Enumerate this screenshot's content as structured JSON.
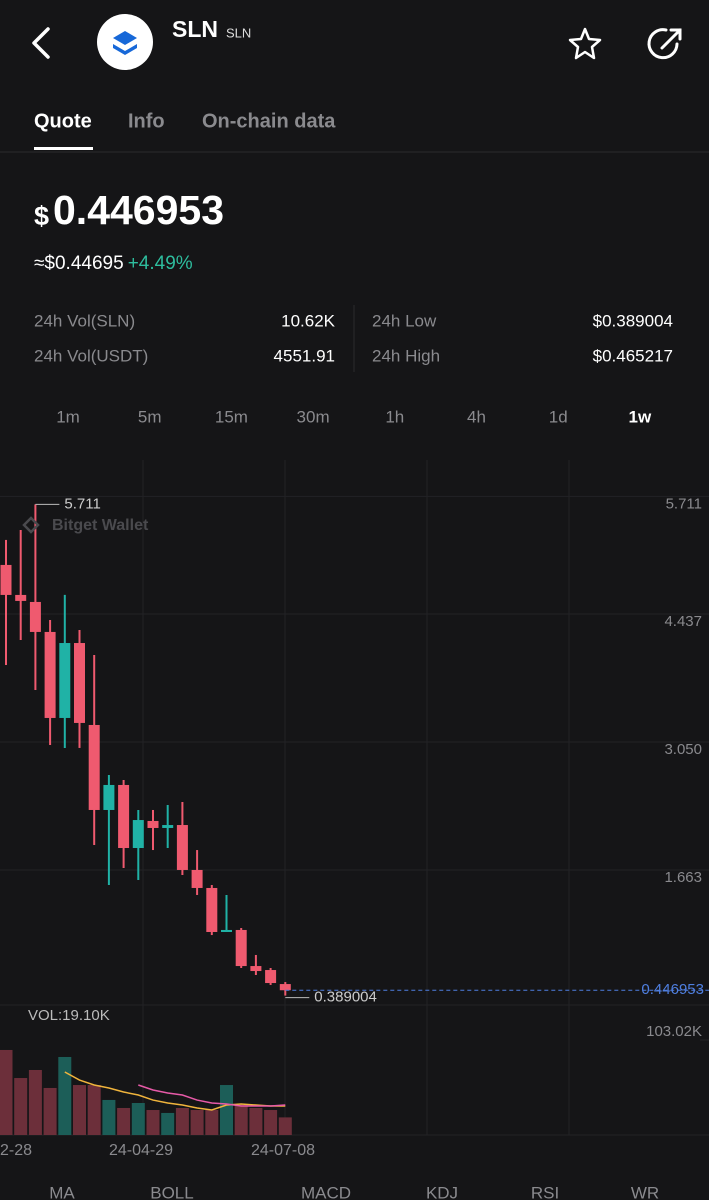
{
  "header": {
    "symbol": "SLN",
    "symbol_small": "SLN"
  },
  "tabs": [
    "Quote",
    "Info",
    "On-chain data"
  ],
  "active_tab": 0,
  "price": {
    "currency": "$",
    "value": "0.446953",
    "approx": "≈$0.44695",
    "change": "+4.49%"
  },
  "stats": [
    {
      "label": "24h Vol(SLN)",
      "value": "10.62K"
    },
    {
      "label": "24h Vol(USDT)",
      "value": "4551.91"
    },
    {
      "label": "24h Low",
      "value": "$0.389004"
    },
    {
      "label": "24h High",
      "value": "$0.465217"
    }
  ],
  "intervals": [
    "1m",
    "5m",
    "15m",
    "30m",
    "1h",
    "4h",
    "1d",
    "1w"
  ],
  "active_interval": 7,
  "chart_data": {
    "type": "candlestick",
    "watermark": "Bitget Wallet",
    "up_color": "#20b2a6",
    "down_color": "#ef5a6f",
    "open": [
      5.055,
      4.73,
      4.654,
      4.329,
      3.397,
      4.209,
      3.321,
      2.4,
      2.671,
      1.988,
      2.281,
      2.205,
      2.237,
      1.75,
      1.555,
      1.078,
      1.1,
      0.709,
      0.666,
      0.514
    ],
    "high": [
      5.326,
      5.434,
      5.711,
      4.459,
      4.73,
      4.35,
      4.079,
      2.779,
      2.725,
      2.4,
      2.4,
      2.454,
      2.487,
      1.966,
      1.587,
      1.479,
      1.121,
      0.829,
      0.688,
      0.536
    ],
    "low": [
      3.971,
      4.242,
      3.7,
      3.104,
      3.072,
      3.072,
      2.021,
      1.587,
      1.771,
      1.641,
      1.966,
      1.988,
      1.695,
      1.479,
      1.045,
      1.078,
      0.688,
      0.612,
      0.504,
      0.389
    ],
    "close": [
      4.73,
      4.665,
      4.329,
      3.397,
      4.209,
      3.343,
      2.4,
      2.671,
      1.988,
      2.291,
      2.205,
      2.237,
      1.75,
      1.555,
      1.078,
      1.1,
      0.709,
      0.655,
      0.525,
      0.447
    ],
    "ylim": [
      0.287,
      6.192
    ],
    "yticks": [
      5.711,
      4.437,
      {
        "value": 3.05,
        "label": "3.050"
      },
      1.663
    ],
    "high_marker": 5.711,
    "low_marker": 0.389004,
    "last_price": 0.446953,
    "last_price_color": "#4f7fe0",
    "x_labels": [
      "2-28",
      "24-04-29",
      "24-07-08"
    ],
    "volume": {
      "label": "VOL:19.10K",
      "values": [
        92.2,
        61.8,
        70.5,
        51.0,
        84.6,
        54.2,
        54.2,
        38.0,
        29.3,
        34.7,
        27.1,
        23.9,
        29.3,
        27.1,
        27.1,
        54.2,
        32.5,
        29.3,
        27.1,
        19.1
      ],
      "ylim": [
        0,
        103.02
      ],
      "yticks": [
        {
          "value": 103.02,
          "label": "103.02K"
        }
      ],
      "ma": [
        {
          "color": "#f0b43c",
          "values": [
            null,
            null,
            null,
            null,
            68.3,
            59.6,
            54.2,
            51.0,
            46.6,
            43.4,
            37.9,
            34.7,
            32.5,
            29.3,
            27.1,
            32.5,
            33.6,
            32.5,
            31.4,
            31.4
          ]
        },
        {
          "color": "#e75aa8",
          "values": [
            null,
            null,
            null,
            null,
            null,
            null,
            null,
            null,
            null,
            54.2,
            48.8,
            45.5,
            43.4,
            37.9,
            34.7,
            33.6,
            31.4,
            31.4,
            31.4,
            32.5
          ]
        }
      ]
    }
  },
  "indicators": [
    "MA",
    "BOLL",
    "MACD",
    "KDJ",
    "RSI",
    "WR"
  ]
}
